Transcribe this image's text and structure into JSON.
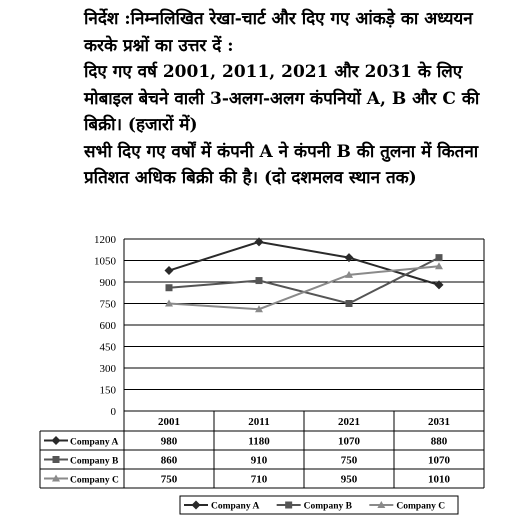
{
  "question": {
    "direction": "निर्देश :निम्नलिखित रेखा-चार्ट और दिए गए आंकड़े का अध्ययन करके प्रश्नों का उत्तर दें :",
    "context": "दिए गए वर्ष 2001, 2011, 2021 और 2031 के लिए मोबाइल बेचने वाली 3-अलग-अलग कंपनियों A, B और C की बिक्री। (हजारों में)",
    "prompt": "सभी दिए गए वर्षों में कंपनी A ने कंपनी B की तुलना में कितना प्रतिशत अधिक बिक्री की है। (दो दशमलव स्थान तक)"
  },
  "chart_data": {
    "type": "line",
    "title": "",
    "xlabel": "",
    "ylabel": "",
    "categories": [
      "2001",
      "2011",
      "2021",
      "2031"
    ],
    "ylim": [
      0,
      1200
    ],
    "yticks": [
      0,
      150,
      300,
      450,
      600,
      750,
      900,
      1050,
      1200
    ],
    "grid": true,
    "legend_position": "bottom",
    "data_table": true,
    "series": [
      {
        "name": "Company A",
        "values": [
          980,
          1180,
          1070,
          880
        ],
        "color": "#2a2a2a",
        "marker": "diamond"
      },
      {
        "name": "Company B",
        "values": [
          860,
          910,
          750,
          1070
        ],
        "color": "#555555",
        "marker": "square"
      },
      {
        "name": "Company C",
        "values": [
          750,
          710,
          950,
          1010
        ],
        "color": "#8a8a8a",
        "marker": "triangle"
      }
    ]
  }
}
